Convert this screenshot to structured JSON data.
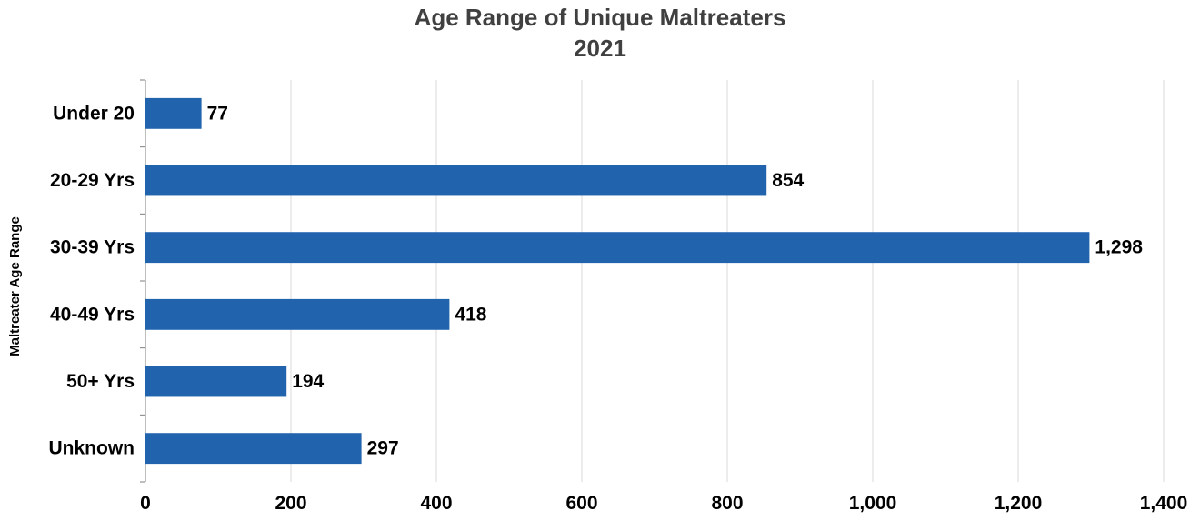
{
  "chart_data": {
    "type": "bar",
    "orientation": "horizontal",
    "title": "Age Range of Unique Maltreaters",
    "subtitle": "2021",
    "ylabel": "Maltreater Age Range",
    "xlabel": "",
    "categories": [
      "Under 20",
      "20-29 Yrs",
      "30-39 Yrs",
      "40-49 Yrs",
      "50+ Yrs",
      "Unknown"
    ],
    "values": [
      77,
      854,
      1298,
      418,
      194,
      297
    ],
    "value_labels": [
      "77",
      "854",
      "1,298",
      "418",
      "194",
      "297"
    ],
    "xlim": [
      0,
      1400
    ],
    "x_ticks": [
      0,
      200,
      400,
      600,
      800,
      1000,
      1200,
      1400
    ],
    "x_tick_labels": [
      "0",
      "200",
      "400",
      "600",
      "800",
      "1,000",
      "1,200",
      "1,400"
    ],
    "grid": "vertical",
    "legend": "none",
    "colors": {
      "bar": "#2263AE",
      "grid": "#D9D9D9",
      "axis": "#7F7F7F",
      "title": "#404040"
    }
  }
}
